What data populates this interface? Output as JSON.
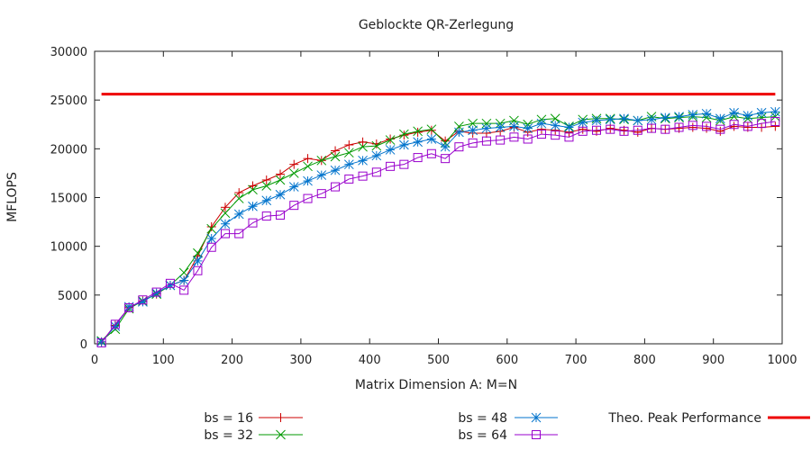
{
  "chart_data": {
    "type": "line",
    "title": "Geblockte QR-Zerlegung",
    "xlabel": "Matrix Dimension A: M=N",
    "ylabel": "MFLOPS",
    "xlim": [
      0,
      1000
    ],
    "ylim": [
      0,
      30000
    ],
    "x_ticks": [
      0,
      100,
      200,
      300,
      400,
      500,
      600,
      700,
      800,
      900,
      1000
    ],
    "y_ticks": [
      0,
      5000,
      10000,
      15000,
      20000,
      25000,
      30000
    ],
    "grid": false,
    "legend_position": "bottom",
    "x": [
      10,
      30,
      50,
      70,
      90,
      110,
      130,
      150,
      170,
      190,
      210,
      230,
      250,
      270,
      290,
      310,
      330,
      350,
      370,
      390,
      410,
      430,
      450,
      470,
      490,
      510,
      530,
      550,
      570,
      590,
      610,
      630,
      650,
      670,
      690,
      710,
      730,
      750,
      770,
      790,
      810,
      830,
      850,
      870,
      890,
      910,
      930,
      950,
      970,
      990
    ],
    "series": [
      {
        "name": "bs = 16",
        "color": "#cc0000",
        "marker": "plus",
        "values": [
          200,
          1900,
          3700,
          4400,
          5100,
          6000,
          6500,
          9000,
          12000,
          14000,
          15500,
          16200,
          16800,
          17400,
          18400,
          19000,
          18800,
          19800,
          20400,
          20700,
          20500,
          21000,
          21400,
          21700,
          21900,
          20800,
          21800,
          21600,
          21600,
          21800,
          22200,
          21700,
          22000,
          21900,
          21700,
          22000,
          21800,
          22100,
          21900,
          21700,
          22100,
          22000,
          22100,
          22200,
          22100,
          21800,
          22300,
          22200,
          22200,
          22300
        ]
      },
      {
        "name": "bs = 32",
        "color": "#009900",
        "marker": "cross",
        "values": [
          300,
          1500,
          3600,
          4400,
          5100,
          6000,
          7300,
          9300,
          11800,
          13400,
          14900,
          15800,
          16200,
          16800,
          17500,
          18200,
          18800,
          19200,
          19600,
          20200,
          20300,
          20900,
          21500,
          21800,
          22000,
          20600,
          22300,
          22600,
          22600,
          22600,
          22900,
          22500,
          23000,
          23100,
          22300,
          23000,
          23100,
          23100,
          23000,
          22900,
          23300,
          23100,
          23200,
          23300,
          23200,
          22900,
          23300,
          23100,
          23200,
          23300
        ]
      },
      {
        "name": "bs = 48",
        "color": "#0073cc",
        "marker": "star",
        "values": [
          200,
          1800,
          3800,
          4300,
          5200,
          6000,
          6500,
          8500,
          10800,
          12300,
          13300,
          14100,
          14700,
          15300,
          16100,
          16700,
          17300,
          17800,
          18400,
          18800,
          19300,
          19900,
          20400,
          20700,
          21000,
          20200,
          21700,
          21900,
          22100,
          22200,
          22300,
          22100,
          22600,
          22400,
          22200,
          22700,
          22900,
          23000,
          23100,
          22900,
          23000,
          23200,
          23300,
          23500,
          23600,
          23100,
          23700,
          23400,
          23700,
          23800
        ]
      },
      {
        "name": "bs = 64",
        "color": "#9900cc",
        "marker": "square",
        "values": [
          100,
          2000,
          3700,
          4500,
          5300,
          6200,
          5500,
          7500,
          9900,
          11300,
          11300,
          12400,
          13100,
          13200,
          14200,
          14900,
          15400,
          16100,
          16900,
          17200,
          17600,
          18200,
          18400,
          19100,
          19500,
          19000,
          20200,
          20600,
          20800,
          20900,
          21200,
          21000,
          21500,
          21400,
          21200,
          21800,
          21900,
          22000,
          21800,
          21900,
          22100,
          22000,
          22200,
          22400,
          22300,
          22000,
          22500,
          22300,
          22600,
          22800
        ]
      },
      {
        "name": "Theo. Peak Performance",
        "color": "#ee0000",
        "marker": "none",
        "line_width": 3,
        "x": [
          10,
          990
        ],
        "values": [
          25600,
          25600
        ]
      }
    ]
  }
}
